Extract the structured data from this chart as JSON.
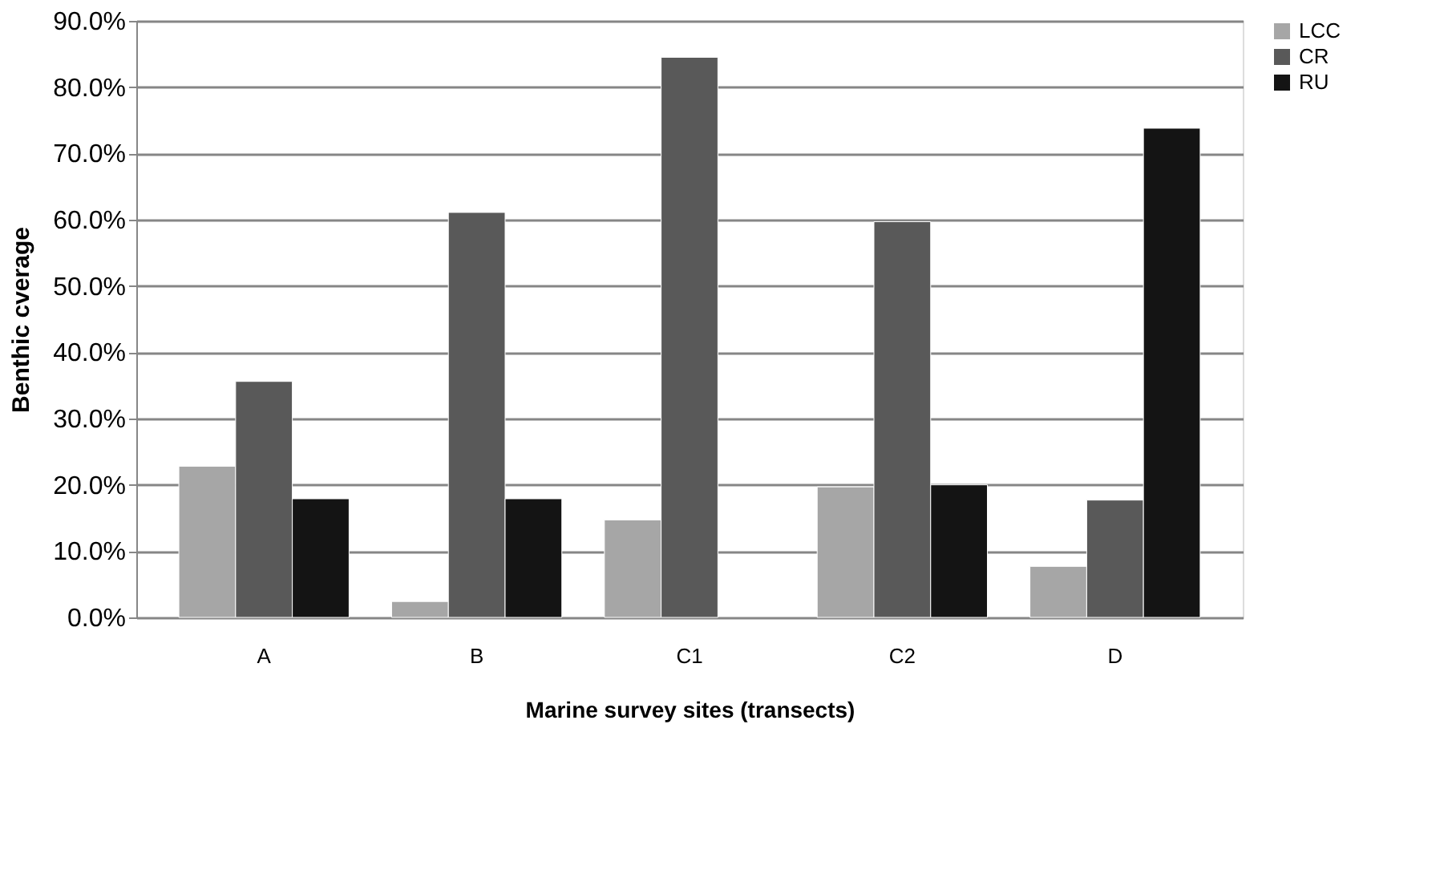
{
  "chart_data": {
    "type": "bar",
    "xlabel": "Marine survey sites (transects)",
    "ylabel": "Benthic cverage",
    "categories": [
      "A",
      "B",
      "C1",
      "C2",
      "D"
    ],
    "series": [
      {
        "name": "LCC",
        "color": "#a6a6a6",
        "values": [
          22.8,
          2.4,
          14.7,
          19.7,
          7.7
        ]
      },
      {
        "name": "CR",
        "color": "#595959",
        "values": [
          35.6,
          61.1,
          84.5,
          59.7,
          17.7
        ]
      },
      {
        "name": "RU",
        "color": "#141414",
        "values": [
          17.9,
          17.9,
          null,
          20.0,
          73.8
        ]
      }
    ],
    "ylim": [
      0,
      90
    ],
    "yticks": [
      {
        "value": 0,
        "label": "0.0%"
      },
      {
        "value": 10,
        "label": "10.0%"
      },
      {
        "value": 20,
        "label": "20.0%"
      },
      {
        "value": 30,
        "label": "30.0%"
      },
      {
        "value": 40,
        "label": "40.0%"
      },
      {
        "value": 50,
        "label": "50.0%"
      },
      {
        "value": 60,
        "label": "60.0%"
      },
      {
        "value": 70,
        "label": "70.0%"
      },
      {
        "value": 80,
        "label": "80.0%"
      },
      {
        "value": 90,
        "label": "90.0%"
      }
    ],
    "grid": "y",
    "legend": "right"
  }
}
